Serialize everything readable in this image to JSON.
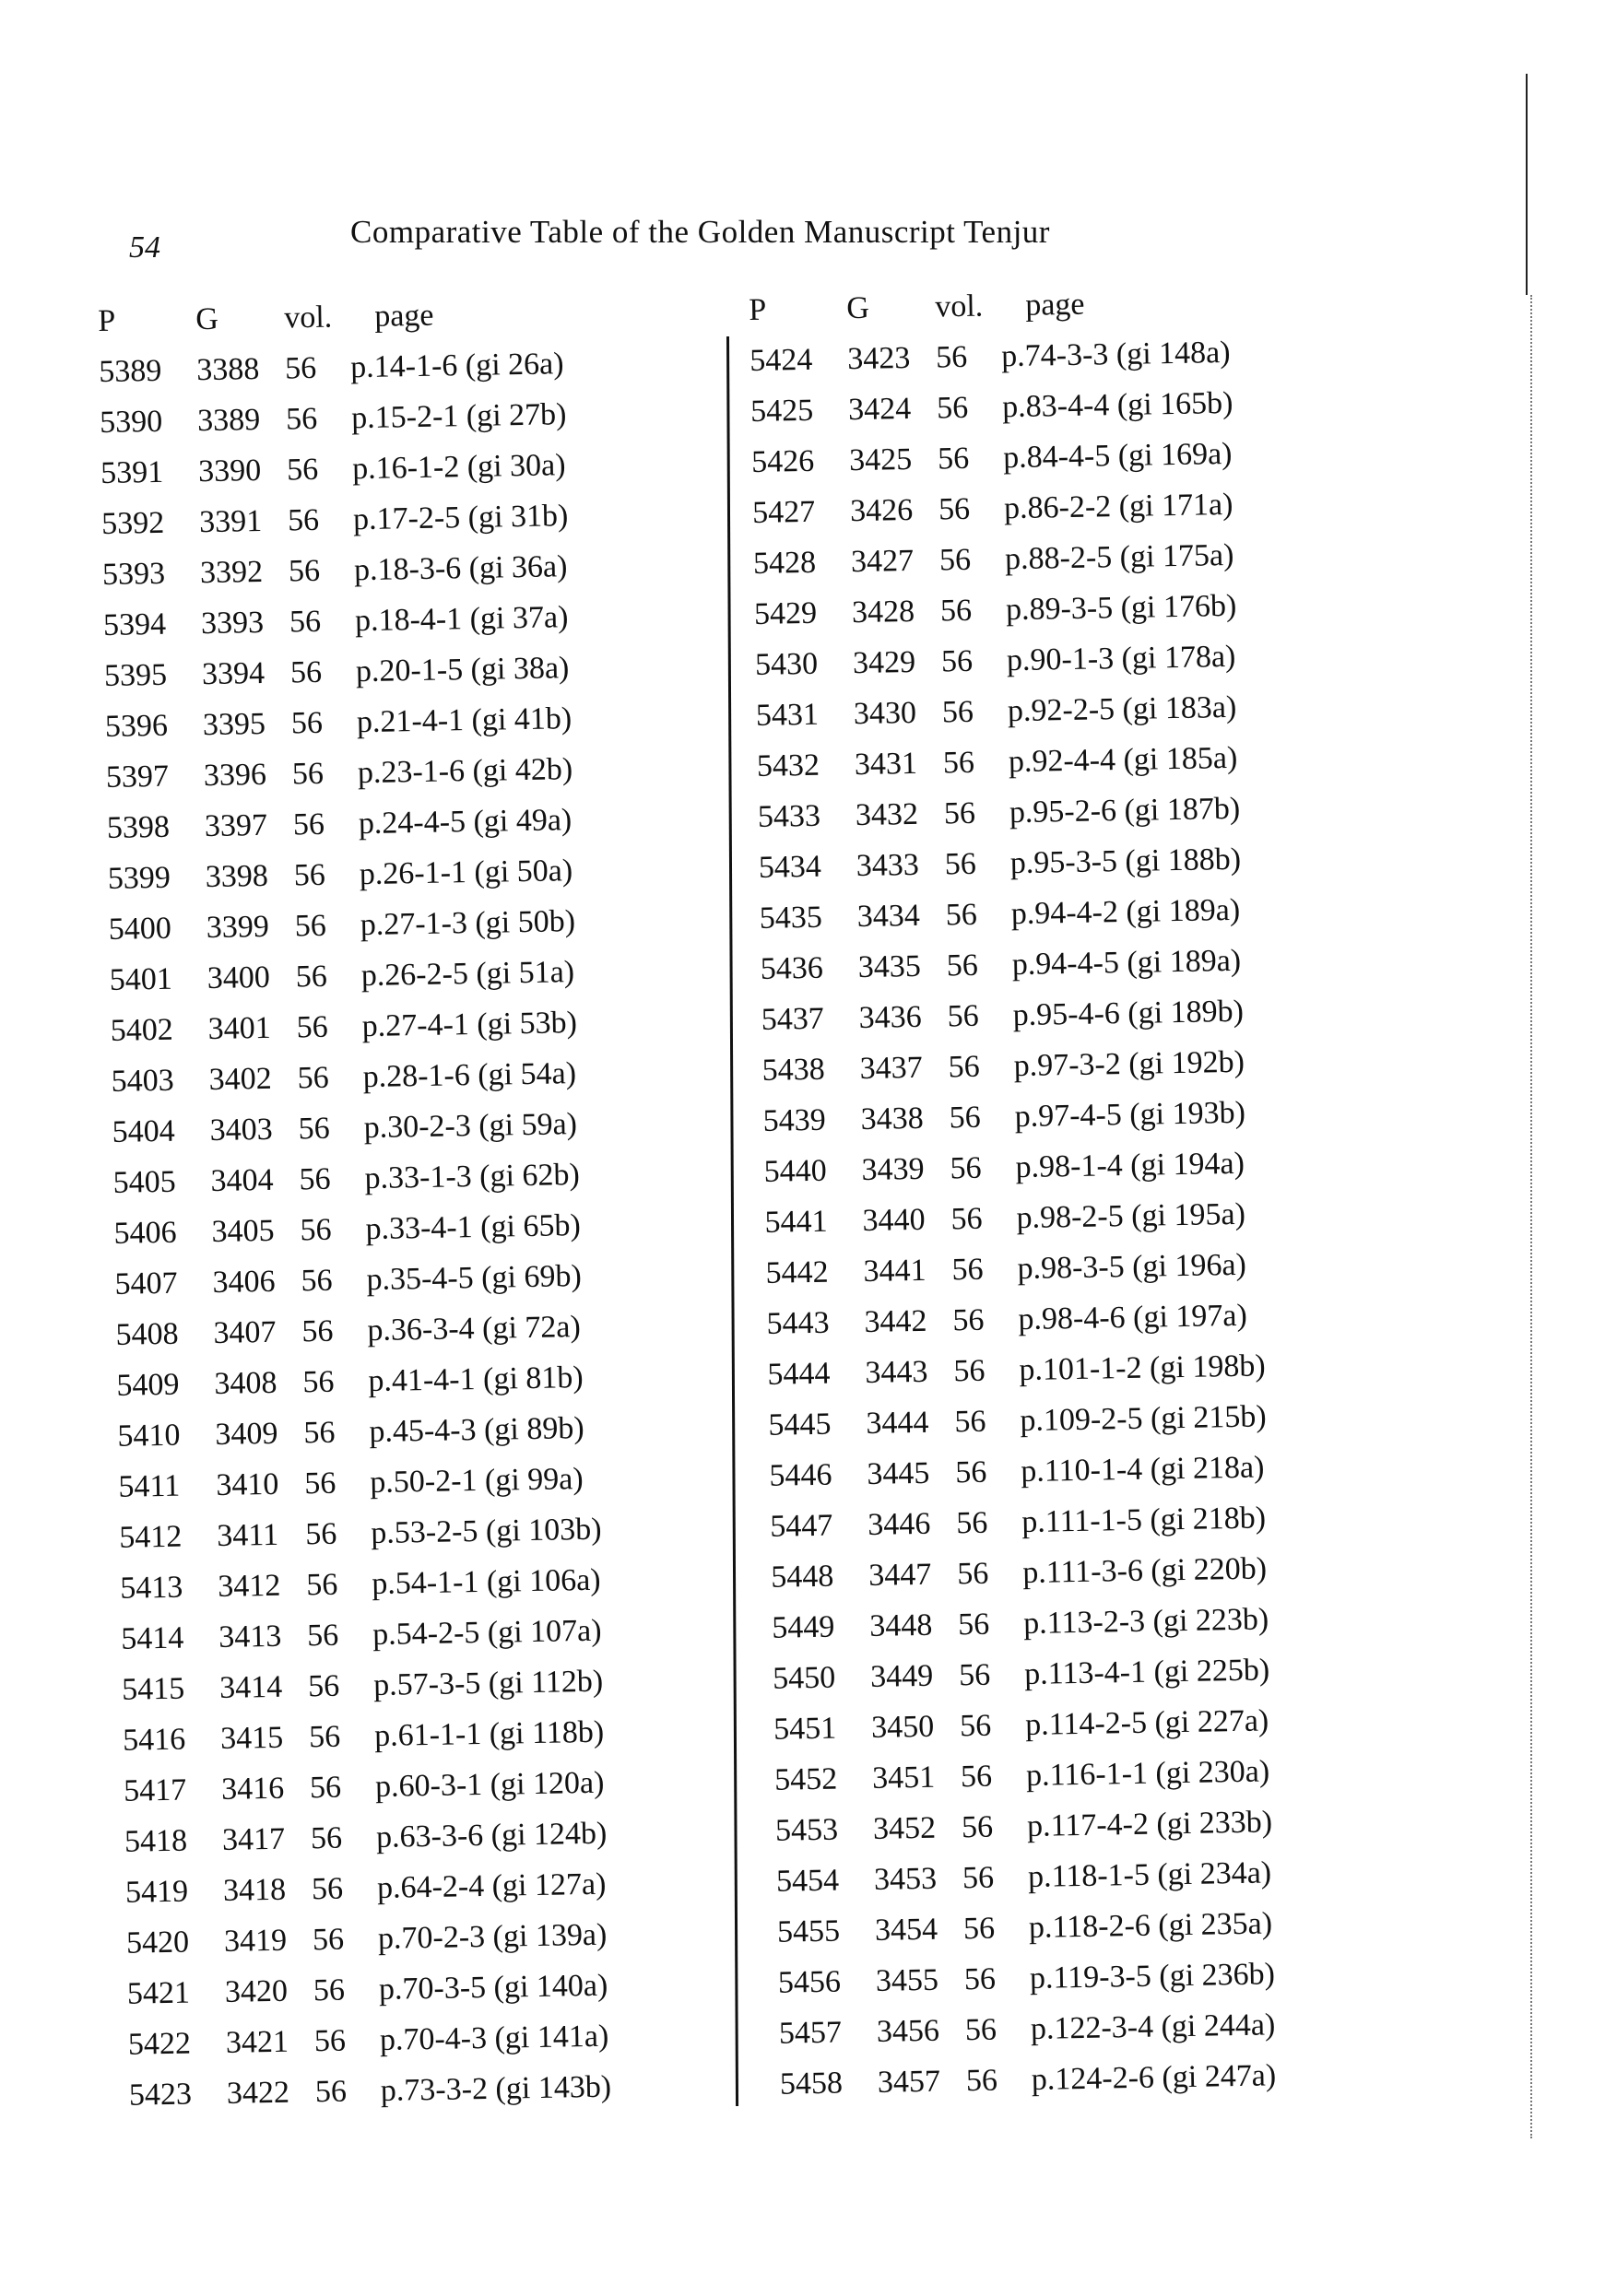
{
  "header": {
    "page_number": "54",
    "title": "Comparative Table of the Golden Manuscript Tenjur"
  },
  "columns": [
    "P",
    "G",
    "vol.",
    "page"
  ],
  "left_rows": [
    [
      "5389",
      "3388",
      "56",
      "p.14-1-6 (gi 26a)"
    ],
    [
      "5390",
      "3389",
      "56",
      "p.15-2-1 (gi 27b)"
    ],
    [
      "5391",
      "3390",
      "56",
      "p.16-1-2 (gi 30a)"
    ],
    [
      "5392",
      "3391",
      "56",
      "p.17-2-5 (gi 31b)"
    ],
    [
      "5393",
      "3392",
      "56",
      "p.18-3-6 (gi 36a)"
    ],
    [
      "5394",
      "3393",
      "56",
      "p.18-4-1 (gi 37a)"
    ],
    [
      "5395",
      "3394",
      "56",
      "p.20-1-5 (gi 38a)"
    ],
    [
      "5396",
      "3395",
      "56",
      "p.21-4-1 (gi 41b)"
    ],
    [
      "5397",
      "3396",
      "56",
      "p.23-1-6 (gi 42b)"
    ],
    [
      "5398",
      "3397",
      "56",
      "p.24-4-5 (gi 49a)"
    ],
    [
      "5399",
      "3398",
      "56",
      "p.26-1-1 (gi 50a)"
    ],
    [
      "5400",
      "3399",
      "56",
      "p.27-1-3 (gi 50b)"
    ],
    [
      "5401",
      "3400",
      "56",
      "p.26-2-5 (gi 51a)"
    ],
    [
      "5402",
      "3401",
      "56",
      "p.27-4-1 (gi 53b)"
    ],
    [
      "5403",
      "3402",
      "56",
      "p.28-1-6 (gi 54a)"
    ],
    [
      "5404",
      "3403",
      "56",
      "p.30-2-3 (gi 59a)"
    ],
    [
      "5405",
      "3404",
      "56",
      "p.33-1-3 (gi 62b)"
    ],
    [
      "5406",
      "3405",
      "56",
      "p.33-4-1 (gi 65b)"
    ],
    [
      "5407",
      "3406",
      "56",
      "p.35-4-5 (gi 69b)"
    ],
    [
      "5408",
      "3407",
      "56",
      "p.36-3-4 (gi 72a)"
    ],
    [
      "5409",
      "3408",
      "56",
      "p.41-4-1 (gi 81b)"
    ],
    [
      "5410",
      "3409",
      "56",
      "p.45-4-3 (gi 89b)"
    ],
    [
      "5411",
      "3410",
      "56",
      "p.50-2-1 (gi 99a)"
    ],
    [
      "5412",
      "3411",
      "56",
      "p.53-2-5 (gi 103b)"
    ],
    [
      "5413",
      "3412",
      "56",
      "p.54-1-1 (gi 106a)"
    ],
    [
      "5414",
      "3413",
      "56",
      "p.54-2-5 (gi 107a)"
    ],
    [
      "5415",
      "3414",
      "56",
      "p.57-3-5 (gi 112b)"
    ],
    [
      "5416",
      "3415",
      "56",
      "p.61-1-1 (gi 118b)"
    ],
    [
      "5417",
      "3416",
      "56",
      "p.60-3-1 (gi 120a)"
    ],
    [
      "5418",
      "3417",
      "56",
      "p.63-3-6 (gi 124b)"
    ],
    [
      "5419",
      "3418",
      "56",
      "p.64-2-4 (gi 127a)"
    ],
    [
      "5420",
      "3419",
      "56",
      "p.70-2-3 (gi 139a)"
    ],
    [
      "5421",
      "3420",
      "56",
      "p.70-3-5 (gi 140a)"
    ],
    [
      "5422",
      "3421",
      "56",
      "p.70-4-3 (gi 141a)"
    ],
    [
      "5423",
      "3422",
      "56",
      "p.73-3-2 (gi 143b)"
    ]
  ],
  "right_rows": [
    [
      "5424",
      "3423",
      "56",
      "p.74-3-3 (gi 148a)"
    ],
    [
      "5425",
      "3424",
      "56",
      "p.83-4-4 (gi 165b)"
    ],
    [
      "5426",
      "3425",
      "56",
      "p.84-4-5 (gi 169a)"
    ],
    [
      "5427",
      "3426",
      "56",
      "p.86-2-2 (gi 171a)"
    ],
    [
      "5428",
      "3427",
      "56",
      "p.88-2-5 (gi 175a)"
    ],
    [
      "5429",
      "3428",
      "56",
      "p.89-3-5 (gi 176b)"
    ],
    [
      "5430",
      "3429",
      "56",
      "p.90-1-3 (gi 178a)"
    ],
    [
      "5431",
      "3430",
      "56",
      "p.92-2-5 (gi 183a)"
    ],
    [
      "5432",
      "3431",
      "56",
      "p.92-4-4 (gi 185a)"
    ],
    [
      "5433",
      "3432",
      "56",
      "p.95-2-6 (gi 187b)"
    ],
    [
      "5434",
      "3433",
      "56",
      "p.95-3-5 (gi 188b)"
    ],
    [
      "5435",
      "3434",
      "56",
      "p.94-4-2 (gi 189a)"
    ],
    [
      "5436",
      "3435",
      "56",
      "p.94-4-5 (gi 189a)"
    ],
    [
      "5437",
      "3436",
      "56",
      "p.95-4-6 (gi 189b)"
    ],
    [
      "5438",
      "3437",
      "56",
      "p.97-3-2 (gi 192b)"
    ],
    [
      "5439",
      "3438",
      "56",
      "p.97-4-5 (gi 193b)"
    ],
    [
      "5440",
      "3439",
      "56",
      "p.98-1-4 (gi 194a)"
    ],
    [
      "5441",
      "3440",
      "56",
      "p.98-2-5 (gi 195a)"
    ],
    [
      "5442",
      "3441",
      "56",
      "p.98-3-5 (gi 196a)"
    ],
    [
      "5443",
      "3442",
      "56",
      "p.98-4-6 (gi 197a)"
    ],
    [
      "5444",
      "3443",
      "56",
      "p.101-1-2 (gi 198b)"
    ],
    [
      "5445",
      "3444",
      "56",
      "p.109-2-5 (gi 215b)"
    ],
    [
      "5446",
      "3445",
      "56",
      "p.110-1-4 (gi 218a)"
    ],
    [
      "5447",
      "3446",
      "56",
      "p.111-1-5 (gi 218b)"
    ],
    [
      "5448",
      "3447",
      "56",
      "p.111-3-6 (gi 220b)"
    ],
    [
      "5449",
      "3448",
      "56",
      "p.113-2-3 (gi 223b)"
    ],
    [
      "5450",
      "3449",
      "56",
      "p.113-4-1 (gi 225b)"
    ],
    [
      "5451",
      "3450",
      "56",
      "p.114-2-5 (gi 227a)"
    ],
    [
      "5452",
      "3451",
      "56",
      "p.116-1-1 (gi 230a)"
    ],
    [
      "5453",
      "3452",
      "56",
      "p.117-4-2 (gi 233b)"
    ],
    [
      "5454",
      "3453",
      "56",
      "p.118-1-5 (gi 234a)"
    ],
    [
      "5455",
      "3454",
      "56",
      "p.118-2-6 (gi 235a)"
    ],
    [
      "5456",
      "3455",
      "56",
      "p.119-3-5 (gi 236b)"
    ],
    [
      "5457",
      "3456",
      "56",
      "p.122-3-4 (gi 244a)"
    ],
    [
      "5458",
      "3457",
      "56",
      "p.124-2-6 (gi 247a)"
    ]
  ]
}
